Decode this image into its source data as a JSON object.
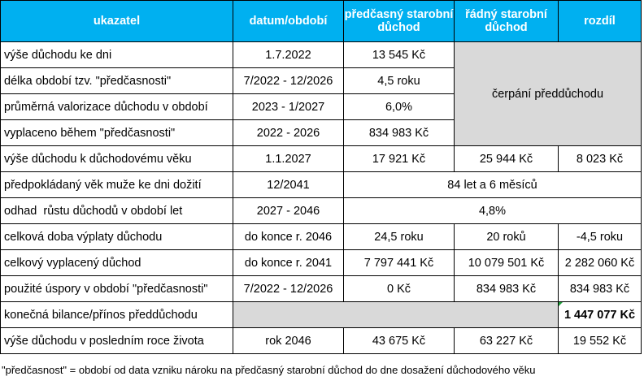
{
  "header": {
    "c1": "ukazatel",
    "c2": "datum/období",
    "c3": "předčasný starobní důchod",
    "c4": "řádný starobní důchod",
    "c5": "rozdíl"
  },
  "rows": [
    {
      "label": "výše důchodu ke dni",
      "date": "1.7.2022",
      "early": "13 545 Kč"
    },
    {
      "label": "délka období tzv. \"předčasnosti\"",
      "date": "7/2022 - 12/2026",
      "early": "4,5 roku"
    },
    {
      "label": "průměrná valorizace důchodu v období",
      "date": "2023 - 1/2027",
      "early": "6,0%"
    },
    {
      "label": "vyplaceno během \"předčasnosti\"",
      "date": "2022 - 2026",
      "early": "834 983 Kč"
    },
    {
      "label": "výše důchodu k důchodovému věku",
      "date": "1.1.2027",
      "early": "17 921 Kč",
      "regular": "25 944 Kč",
      "diff": "8 023 Kč"
    },
    {
      "label": "předpokládaný věk muže ke dni dožití",
      "date": "12/2041",
      "merged": "84 let a 6 měsíců"
    },
    {
      "label": "odhad  růstu důchodů v období let",
      "date": "2027 - 2046",
      "merged": "4,8%"
    },
    {
      "label": "celková doba výplaty důchodu",
      "date": "do konce r. 2046",
      "early": "24,5 roku",
      "regular": "20 roků",
      "diff": "-4,5 roku"
    },
    {
      "label": "celkový vyplacený důchod",
      "date": "do konce r. 2041",
      "early": "7 797 441 Kč",
      "regular": "10 079 501 Kč",
      "diff": "2 282 060 Kč"
    },
    {
      "label": "použité úspory v období \"předčasnosti\"",
      "date": "7/2022 - 12/2026",
      "early": "0 Kč",
      "regular": "834 983 Kč",
      "diff": "834 983 Kč"
    },
    {
      "label": "konečná bilance/přínos předdůchodu",
      "diff": "1 447 077 Kč"
    },
    {
      "label": "výše důchodu v posledním roce života",
      "date": "rok 2046",
      "early": "43 675 Kč",
      "regular": "63 227 Kč",
      "diff": "19 552 Kč"
    }
  ],
  "grey_block_text": "čerpání předdůchodu",
  "footnote": "\"předčasnost\" = období od data vzniku nároku na předčasný starobní důchod do dne dosažení důchodového věku",
  "colors": {
    "header_bg": "#00b0f0",
    "header_text": "#ffffff",
    "grey_cell": "#d9d9d9"
  }
}
